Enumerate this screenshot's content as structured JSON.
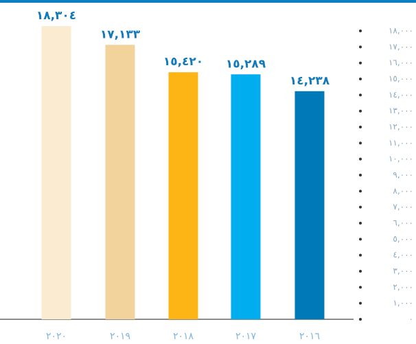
{
  "chart_data": {
    "type": "bar",
    "categories": [
      "٢٠٢٠",
      "٢٠١٩",
      "٢٠١٨",
      "٢٠١٧",
      "٢٠١٦"
    ],
    "values": [
      18304,
      17133,
      15420,
      15289,
      14238
    ],
    "value_labels": [
      "١٨,٣٠٤",
      "١٧,١٣٣",
      "١٥,٤٢٠",
      "١٥,٢٨٩",
      "١٤,٢٣٨"
    ],
    "colors": [
      "#fbecd1",
      "#f3d39c",
      "#fdb515",
      "#00adee",
      "#0079b8"
    ],
    "ylim": [
      0,
      19000
    ],
    "yticks": [
      {
        "value": 0,
        "label": "٠"
      },
      {
        "value": 1000,
        "label": "١,٠٠٠"
      },
      {
        "value": 2000,
        "label": "٢,٠٠٠"
      },
      {
        "value": 3000,
        "label": "٣,٠٠٠"
      },
      {
        "value": 4000,
        "label": "٤,٠٠٠"
      },
      {
        "value": 5000,
        "label": "٥,٠٠٠"
      },
      {
        "value": 6000,
        "label": "٦,٠٠٠"
      },
      {
        "value": 7000,
        "label": "٧,٠٠٠"
      },
      {
        "value": 8000,
        "label": "٨,٠٠٠"
      },
      {
        "value": 9000,
        "label": "٩,٠٠٠"
      },
      {
        "value": 10000,
        "label": "١٠,٠٠٠"
      },
      {
        "value": 11000,
        "label": "١١,٠٠٠"
      },
      {
        "value": 12000,
        "label": "١٢,٠٠٠"
      },
      {
        "value": 13000,
        "label": "١٣,٠٠٠"
      },
      {
        "value": 14000,
        "label": "١٤,٠٠٠"
      },
      {
        "value": 15000,
        "label": "١٥,٠٠٠"
      },
      {
        "value": 16000,
        "label": "١٦,٠٠٠"
      },
      {
        "value": 17000,
        "label": "١٧,٠٠٠"
      },
      {
        "value": 18000,
        "label": "١٨,٠٠٠"
      }
    ]
  }
}
